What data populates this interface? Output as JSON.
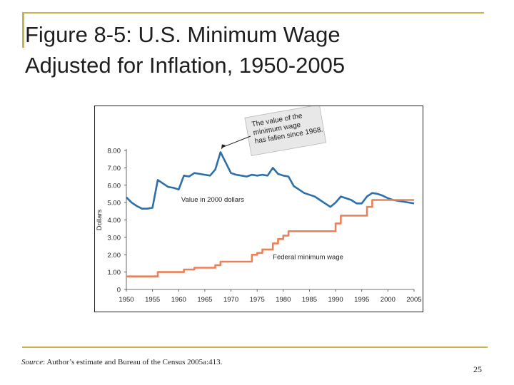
{
  "slide": {
    "title_line1": "Figure 8-5: U.S. Minimum Wage",
    "title_line2": "Adjusted for Inflation, 1950-2005",
    "source_lead": "Source",
    "source_rest": ": Author’s estimate and Bureau of the Census 2005a:413.",
    "page_number": "25"
  },
  "colors": {
    "accent": "#c9b34d",
    "adjusted": "#2d6fa8",
    "nominal": "#e8825a"
  },
  "chart_data": {
    "type": "line",
    "title": "",
    "xlabel": "",
    "ylabel": "Dollars",
    "xlim": [
      1950,
      2005
    ],
    "ylim": [
      0,
      8
    ],
    "x_ticks": [
      1950,
      1955,
      1960,
      1965,
      1970,
      1975,
      1980,
      1985,
      1990,
      1995,
      2000,
      2005
    ],
    "y_ticks": [
      {
        "value": 0,
        "label": "0"
      },
      {
        "value": 1,
        "label": "1.00"
      },
      {
        "value": 2,
        "label": "2.00"
      },
      {
        "value": 3,
        "label": "3.00"
      },
      {
        "value": 4,
        "label": "4.00"
      },
      {
        "value": 5,
        "label": "5.00"
      },
      {
        "value": 6,
        "label": "6.00"
      },
      {
        "value": 7,
        "label": "7.00"
      },
      {
        "value": 8,
        "label": "8.00"
      }
    ],
    "series": [
      {
        "name": "Value in 2000 dollars",
        "color": "#2d6fa8",
        "step": false,
        "x": [
          1950,
          1951,
          1952,
          1953,
          1954,
          1955,
          1956,
          1957,
          1958,
          1959,
          1960,
          1961,
          1962,
          1963,
          1964,
          1965,
          1966,
          1967,
          1968,
          1969,
          1970,
          1971,
          1972,
          1973,
          1974,
          1975,
          1976,
          1977,
          1978,
          1979,
          1980,
          1981,
          1982,
          1983,
          1984,
          1985,
          1986,
          1987,
          1988,
          1989,
          1990,
          1991,
          1992,
          1993,
          1994,
          1995,
          1996,
          1997,
          1998,
          1999,
          2000,
          2001,
          2002,
          2003,
          2004,
          2005
        ],
        "values": [
          5.3,
          5.0,
          4.8,
          4.65,
          4.65,
          4.7,
          6.3,
          6.1,
          5.9,
          5.85,
          5.75,
          6.55,
          6.5,
          6.7,
          6.65,
          6.6,
          6.55,
          6.9,
          7.9,
          7.3,
          6.7,
          6.6,
          6.55,
          6.5,
          6.6,
          6.55,
          6.6,
          6.55,
          7.0,
          6.65,
          6.55,
          6.5,
          5.95,
          5.75,
          5.55,
          5.45,
          5.35,
          5.15,
          4.95,
          4.75,
          5.0,
          5.35,
          5.25,
          5.15,
          4.95,
          4.95,
          5.35,
          5.55,
          5.5,
          5.4,
          5.25,
          5.15,
          5.1,
          5.05,
          5.0,
          4.95
        ]
      },
      {
        "name": "Federal minimum wage",
        "color": "#e8825a",
        "step": true,
        "x": [
          1950,
          1956,
          1961,
          1963,
          1967,
          1968,
          1974,
          1975,
          1976,
          1978,
          1979,
          1980,
          1981,
          1990,
          1991,
          1996,
          1997,
          2005
        ],
        "values": [
          0.75,
          1.0,
          1.15,
          1.25,
          1.4,
          1.6,
          2.0,
          2.1,
          2.3,
          2.65,
          2.9,
          3.1,
          3.35,
          3.8,
          4.25,
          4.75,
          5.15,
          5.15
        ]
      }
    ],
    "annotations": [
      {
        "text": "The value of the minimum wage has fallen since 1968.",
        "style": "callout",
        "points_to": {
          "x": 1968,
          "y": 7.9
        }
      }
    ]
  }
}
